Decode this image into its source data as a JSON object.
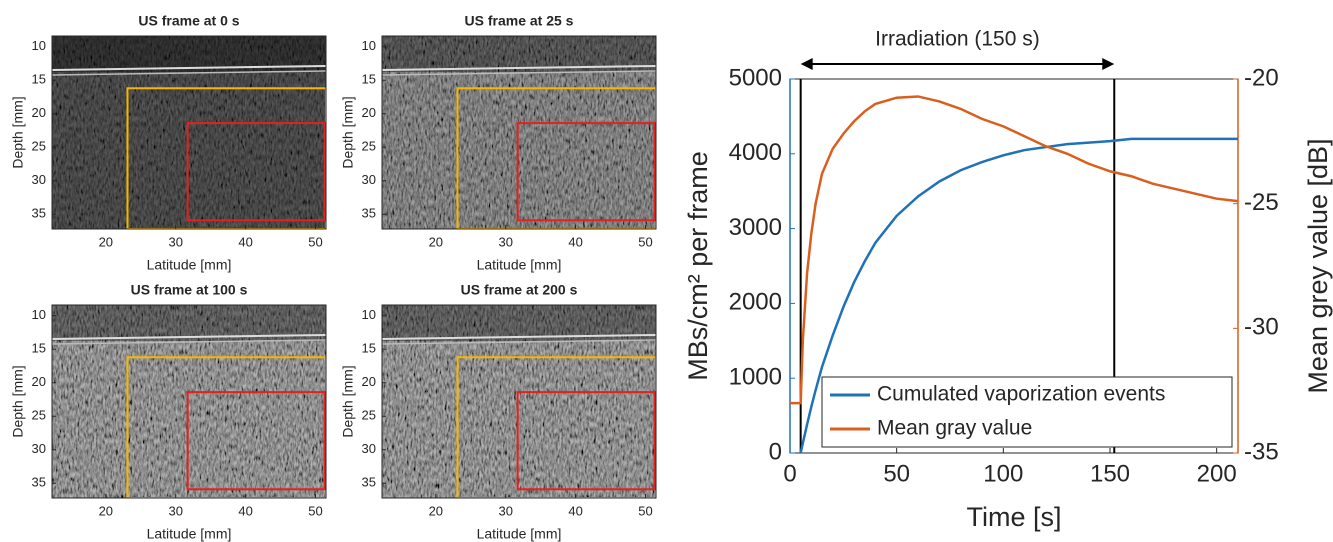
{
  "chart_data": [
    {
      "type": "image",
      "title": "US frame at 0 s",
      "xlabel": "Latitude [mm]",
      "ylabel": "Depth [mm]",
      "xlim": [
        12.3,
        51.5
      ],
      "ylim": [
        37.2,
        8.4
      ],
      "xticks": [
        20,
        30,
        40,
        50
      ],
      "yticks": [
        10,
        15,
        20,
        25,
        30,
        35
      ],
      "regions": [
        {
          "color": "#f5b800",
          "x": [
            23.1,
            51.5
          ],
          "y": [
            16.2,
            37.2
          ]
        },
        {
          "color": "#e52020",
          "x": [
            31.7,
            51.3
          ],
          "y": [
            21.4,
            35.9
          ]
        }
      ]
    },
    {
      "type": "image",
      "title": "US frame at 25 s",
      "xlabel": "Latitude [mm]",
      "ylabel": "Depth [mm]",
      "xlim": [
        12.3,
        51.5
      ],
      "ylim": [
        37.2,
        8.4
      ],
      "xticks": [
        20,
        30,
        40,
        50
      ],
      "yticks": [
        10,
        15,
        20,
        25,
        30,
        35
      ],
      "regions": [
        {
          "color": "#f5b800",
          "x": [
            23.1,
            51.5
          ],
          "y": [
            16.2,
            37.2
          ]
        },
        {
          "color": "#e52020",
          "x": [
            31.7,
            51.3
          ],
          "y": [
            21.4,
            35.9
          ]
        }
      ]
    },
    {
      "type": "image",
      "title": "US frame at 100 s",
      "xlabel": "Latitude [mm]",
      "ylabel": "Depth [mm]",
      "xlim": [
        12.3,
        51.5
      ],
      "ylim": [
        37.2,
        8.4
      ],
      "xticks": [
        20,
        30,
        40,
        50
      ],
      "yticks": [
        10,
        15,
        20,
        25,
        30,
        35
      ],
      "regions": [
        {
          "color": "#f5b800",
          "x": [
            23.1,
            51.5
          ],
          "y": [
            16.2,
            37.2
          ]
        },
        {
          "color": "#e52020",
          "x": [
            31.7,
            51.3
          ],
          "y": [
            21.4,
            35.9
          ]
        }
      ]
    },
    {
      "type": "image",
      "title": "US frame at 200 s",
      "xlabel": "Latitude [mm]",
      "ylabel": "Depth [mm]",
      "xlim": [
        12.3,
        51.5
      ],
      "ylim": [
        37.2,
        8.4
      ],
      "xticks": [
        20,
        30,
        40,
        50
      ],
      "yticks": [
        10,
        15,
        20,
        25,
        30,
        35
      ],
      "regions": [
        {
          "color": "#f5b800",
          "x": [
            23.1,
            51.5
          ],
          "y": [
            16.2,
            37.2
          ]
        },
        {
          "color": "#e52020",
          "x": [
            31.7,
            51.3
          ],
          "y": [
            21.4,
            35.9
          ]
        }
      ]
    },
    {
      "type": "line",
      "xlabel": "Time [s]",
      "ylabel": "MBs/cm² per frame",
      "y2label": "Mean grey value [dB]",
      "annotation": {
        "text": "Irradiation (150 s)",
        "x": [
          5,
          152
        ]
      },
      "xlim": [
        0,
        210
      ],
      "xticks": [
        0,
        50,
        100,
        150,
        200
      ],
      "ylim": [
        0,
        5000
      ],
      "yticks": [
        0,
        1000,
        2000,
        3000,
        4000,
        5000
      ],
      "y2lim": [
        -35,
        -20
      ],
      "y2ticks": [
        -35,
        -30,
        -25,
        -20
      ],
      "legend": "lower right",
      "x": [
        0,
        4,
        5,
        6,
        8,
        10,
        12,
        15,
        20,
        25,
        30,
        35,
        40,
        50,
        60,
        70,
        80,
        90,
        100,
        110,
        120,
        130,
        140,
        150,
        160,
        170,
        180,
        190,
        200,
        210
      ],
      "series": [
        {
          "name": "Cumulated vaporization events",
          "color": "#1f72b8",
          "values": [
            null,
            null,
            0,
            130,
            380,
            620,
            840,
            1150,
            1570,
            1950,
            2280,
            2560,
            2810,
            3170,
            3430,
            3630,
            3780,
            3890,
            3980,
            4050,
            4090,
            4130,
            4150,
            4170,
            4200,
            4200,
            4200,
            4200,
            4200,
            4200
          ]
        },
        {
          "name": "Mean gray value",
          "color": "#d95f1e",
          "axis": "y2",
          "values": [
            -33,
            -33,
            -33,
            -30.5,
            -27.8,
            -26.2,
            -25,
            -23.8,
            -22.8,
            -22.2,
            -21.7,
            -21.3,
            -21.0,
            -20.75,
            -20.7,
            -20.9,
            -21.2,
            -21.6,
            -21.9,
            -22.3,
            -22.7,
            -23.0,
            -23.4,
            -23.7,
            -23.9,
            -24.2,
            -24.4,
            -24.6,
            -24.8,
            -24.9
          ]
        }
      ]
    }
  ]
}
